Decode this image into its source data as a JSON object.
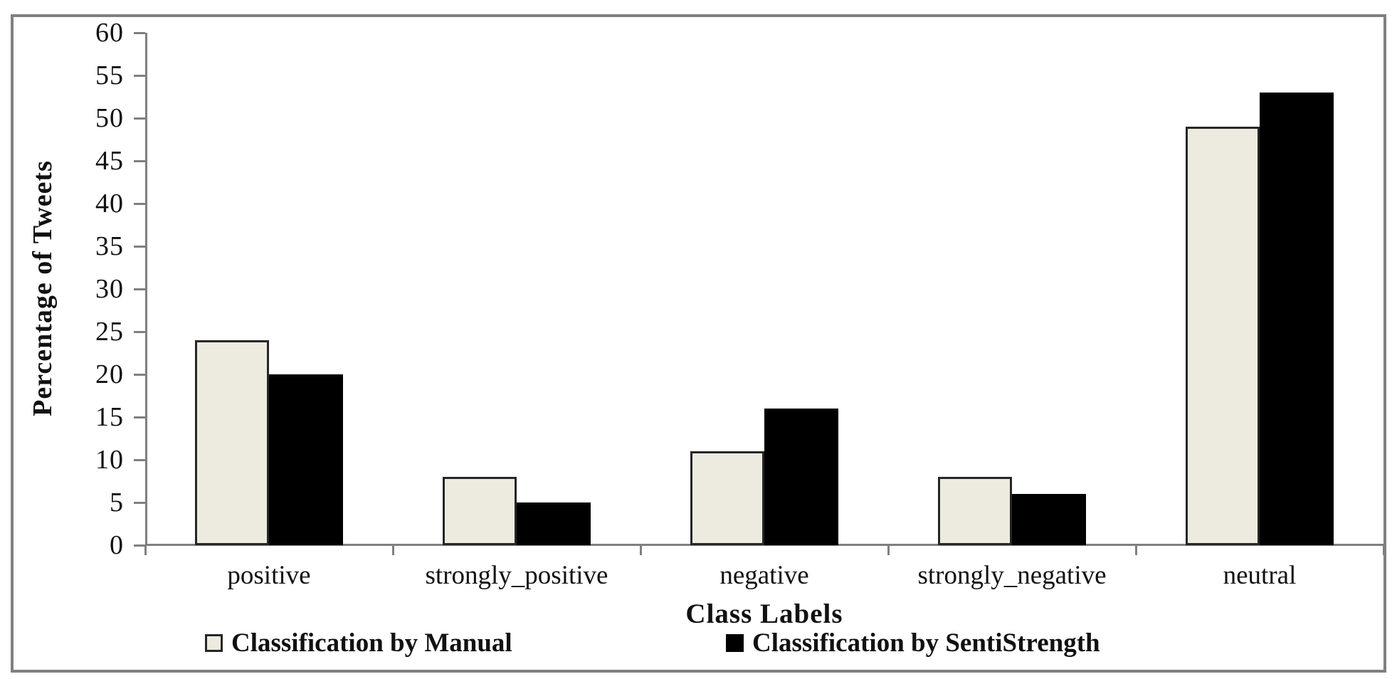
{
  "chart_data": {
    "type": "bar",
    "title": "",
    "categories": [
      "positive",
      "strongly_positive",
      "negative",
      "strongly_negative",
      "neutral"
    ],
    "series": [
      {
        "name": "Classification by Manual",
        "color": "#edebdf",
        "border_color": "#262626",
        "values": [
          24,
          8,
          11,
          8,
          49
        ]
      },
      {
        "name": "Classification by SentiStrength",
        "color": "#000000",
        "border_color": "#000000",
        "values": [
          20,
          5,
          16,
          6,
          53
        ]
      }
    ],
    "xlabel": "Class Labels",
    "ylabel": "Percentage of Tweets",
    "ylim": [
      0,
      60
    ],
    "ytick_step": 5,
    "grid": false,
    "legend_position": "bottom"
  },
  "frame": {
    "border_color": "#808080",
    "axis_line_color": "#808080",
    "background": "#ffffff",
    "text_color": "#111111"
  }
}
